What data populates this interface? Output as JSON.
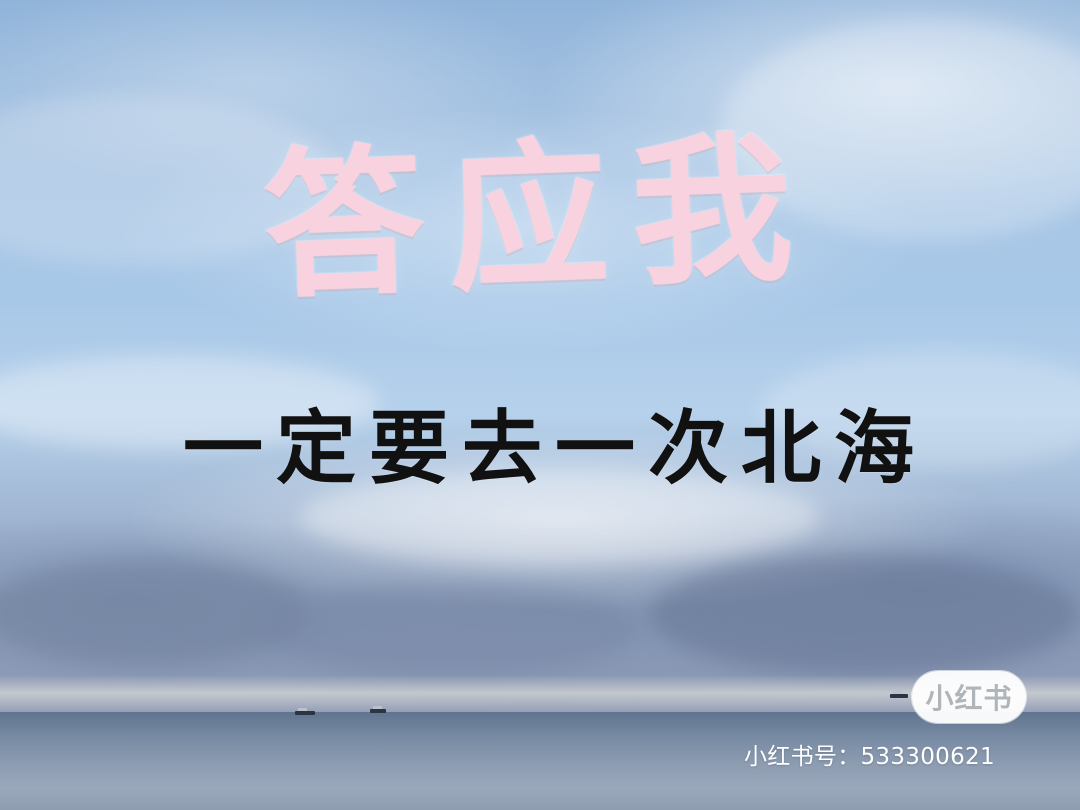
{
  "poster": {
    "headline": "答应我",
    "subtitle": "一定要去一次北海"
  },
  "brand": {
    "logo_text": "小红书",
    "watermark_label": "小红书号：",
    "watermark_number": "533300621"
  }
}
